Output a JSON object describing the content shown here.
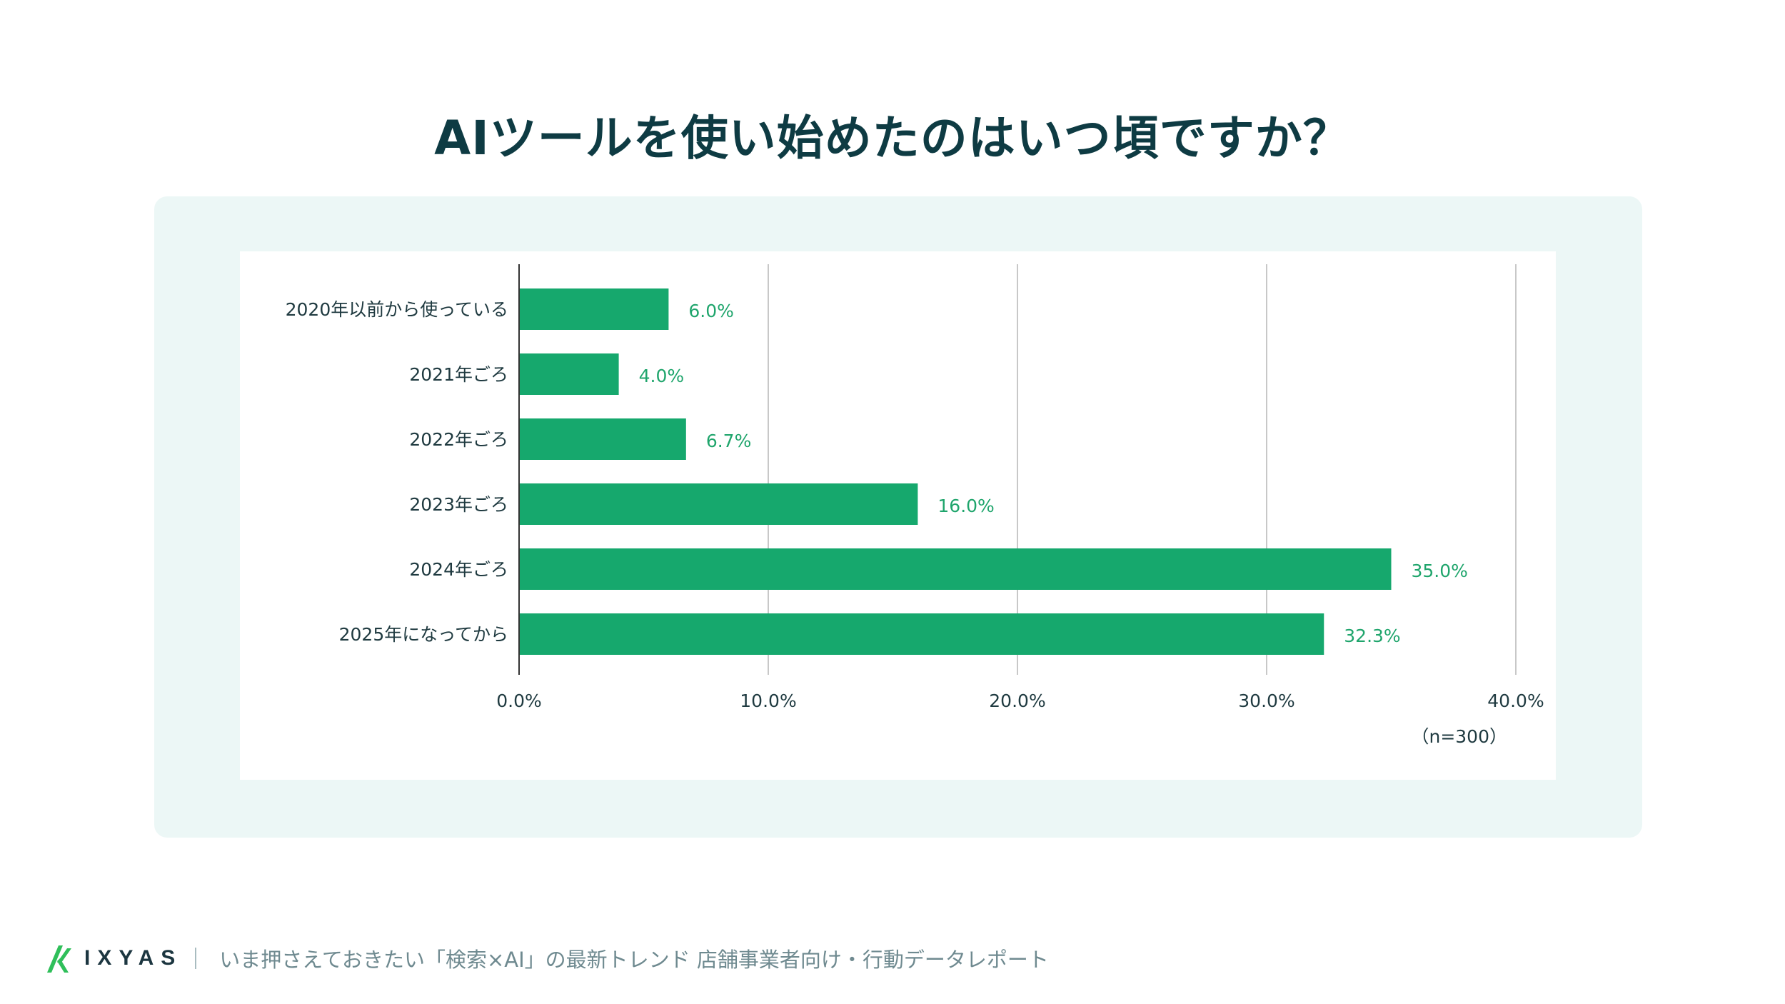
{
  "title": "AIツールを使い始めたのはいつ頃ですか？",
  "colors": {
    "bar": "#16a86d",
    "value_label": "#1fa56c",
    "title": "#0e3b43",
    "panel": "#ecf7f6",
    "grid": "#c8c8c8"
  },
  "chart_data": {
    "type": "bar",
    "orientation": "horizontal",
    "categories": [
      "2020年以前から使っている",
      "2021年ごろ",
      "2022年ごろ",
      "2023年ごろ",
      "2024年ごろ",
      "2025年になってから"
    ],
    "values": [
      6.0,
      4.0,
      6.7,
      16.0,
      35.0,
      32.3
    ],
    "value_labels": [
      "6.0%",
      "4.0%",
      "6.7%",
      "16.0%",
      "35.0%",
      "32.3%"
    ],
    "xlim": [
      0,
      40
    ],
    "x_ticks": [
      0,
      10,
      20,
      30,
      40
    ],
    "x_tick_labels": [
      "0.0%",
      "10.0%",
      "20.0%",
      "30.0%",
      "40.0%"
    ],
    "grid": true,
    "xlabel": "",
    "ylabel": ""
  },
  "note": "（n=300）",
  "footer": {
    "logo_text": "IXYAS",
    "logo_icon": "ixyas-logo-icon",
    "caption": "いま押さえておきたい「検索×AI」の最新トレンド 店舗事業者向け・行動データレポート"
  }
}
